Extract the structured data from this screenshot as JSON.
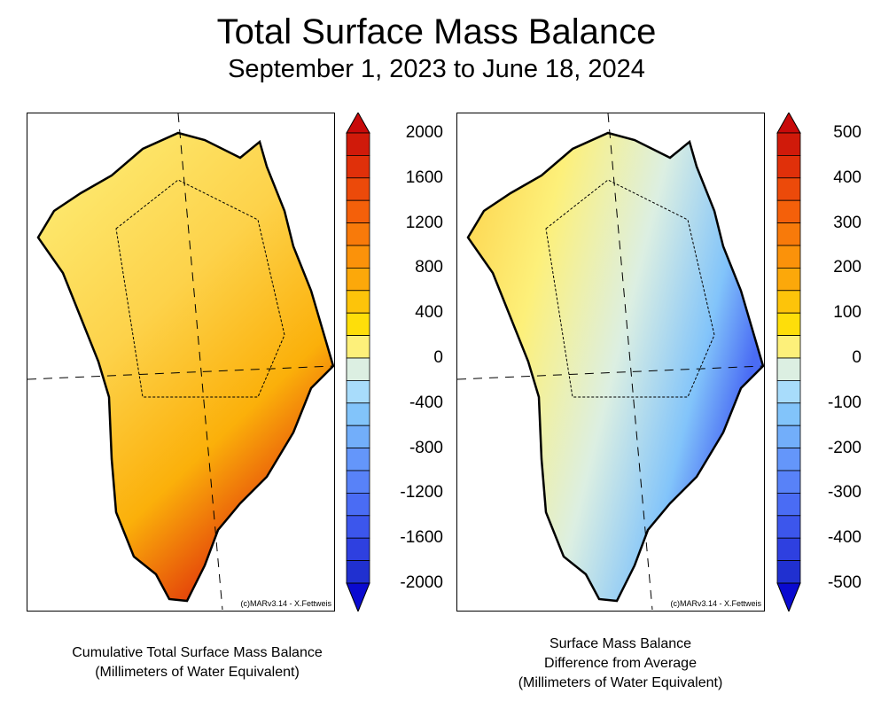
{
  "title": "Total Surface Mass Balance",
  "subtitle": "September 1, 2023 to June 18, 2024",
  "credit": "(c)MARv3.14 - X.Fettweis",
  "left_panel": {
    "caption_line1": "Cumulative Total Surface Mass Balance",
    "caption_line2": "(Millimeters of Water Equivalent)",
    "colorbar_labels": [
      "2000",
      "1600",
      "1200",
      "800",
      "400",
      "0",
      "-400",
      "-800",
      "-1200",
      "-1600",
      "-2000"
    ],
    "colorbar_range": [
      -2000,
      2000
    ]
  },
  "right_panel": {
    "caption_line1": "Surface Mass Balance",
    "caption_line2": "Difference from Average",
    "caption_line3": "(Millimeters of Water Equivalent)",
    "colorbar_labels": [
      "500",
      "400",
      "300",
      "200",
      "100",
      "0",
      "-100",
      "-200",
      "-300",
      "-400",
      "-500"
    ],
    "colorbar_range": [
      -500,
      500
    ]
  },
  "colors": {
    "scale_top_to_bottom": [
      "#d01a0a",
      "#e0300a",
      "#ec4a0a",
      "#f4600a",
      "#f87a0a",
      "#fb920a",
      "#fca80a",
      "#fdc40a",
      "#fede0a",
      "#fdf07a",
      "#dcefe2",
      "#a8dcfb",
      "#82c4fa",
      "#72aefa",
      "#6496fa",
      "#5882f8",
      "#4a6cf4",
      "#3c56ec",
      "#2e40e0",
      "#2030d0"
    ],
    "over": "#c80a0a",
    "under": "#0a0ad0"
  }
}
